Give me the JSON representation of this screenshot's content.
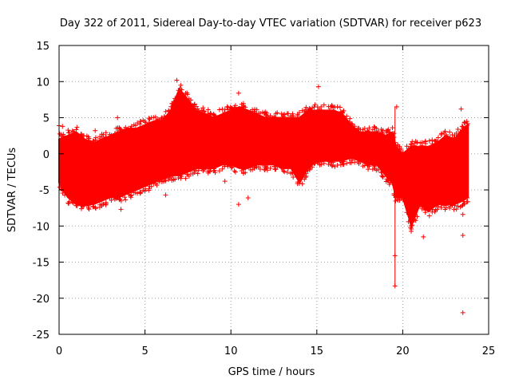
{
  "chart_data": {
    "type": "scatter",
    "title": "Day 322 of 2011, Sidereal Day-to-day VTEC variation (SDTVAR) for receiver p623",
    "xlabel": "GPS time / hours",
    "ylabel": "SDTVAR / TECUs",
    "xlim": [
      0,
      25
    ],
    "ylim": [
      -25,
      15
    ],
    "x_ticks": [
      0,
      5,
      10,
      15,
      20,
      25
    ],
    "y_ticks": [
      -25,
      -20,
      -15,
      -10,
      -5,
      0,
      5,
      10,
      15
    ],
    "grid": true,
    "marker": "+",
    "color": "#ff0000",
    "envelope": {
      "x": [
        0,
        0.5,
        1,
        1.5,
        2,
        2.5,
        3,
        3.5,
        4,
        4.5,
        5,
        5.5,
        6,
        6.5,
        7,
        7.5,
        8,
        8.5,
        9,
        9.5,
        10,
        10.5,
        11,
        11.5,
        12,
        12.5,
        13,
        13.5,
        14,
        14.5,
        15,
        15.5,
        16,
        16.5,
        17,
        17.5,
        18,
        18.5,
        19,
        19.4,
        19.6,
        20,
        20.5,
        21,
        21.5,
        22,
        22.5,
        23,
        23.5,
        23.8
      ],
      "upper": [
        2,
        2.5,
        3,
        2,
        1.5,
        2,
        2.5,
        3,
        3.5,
        3.5,
        4,
        4.5,
        4.5,
        6,
        9,
        7.5,
        6,
        5.5,
        5,
        5.5,
        6,
        6.5,
        6,
        5.5,
        5,
        5,
        5,
        5,
        5,
        6,
        6,
        6,
        6,
        5.5,
        4,
        3,
        3,
        3,
        2.5,
        3,
        1,
        0,
        1,
        1,
        1,
        1.5,
        2.5,
        2,
        3.5,
        4
      ],
      "lower": [
        -4,
        -6,
        -7,
        -7,
        -7,
        -6.5,
        -6,
        -6,
        -5.5,
        -5,
        -4.5,
        -4,
        -3.5,
        -3,
        -3,
        -2.5,
        -2,
        -2,
        -2,
        -1.5,
        -1.5,
        -2,
        -2,
        -1.5,
        -1.5,
        -1.5,
        -2,
        -2,
        -4,
        -2,
        -1,
        -1,
        -1,
        -1,
        -0.5,
        -1,
        -1.5,
        -1.5,
        -3,
        -4,
        -6,
        -6,
        -10,
        -7,
        -8,
        -7,
        -7,
        -7,
        -6.5,
        -6
      ]
    },
    "outliers": [
      {
        "x": 19.55,
        "y": -18.3
      },
      {
        "x": 19.55,
        "y": -14.1
      },
      {
        "x": 19.65,
        "y": 6.5
      },
      {
        "x": 23.5,
        "y": -22.0
      },
      {
        "x": 23.5,
        "y": -11.3
      },
      {
        "x": 23.5,
        "y": -8.4
      },
      {
        "x": 15.1,
        "y": 9.3
      },
      {
        "x": 6.85,
        "y": 10.2
      },
      {
        "x": 9.65,
        "y": -3.8
      },
      {
        "x": 10.45,
        "y": -7.0
      },
      {
        "x": 10.45,
        "y": 8.4
      },
      {
        "x": 11.0,
        "y": -6.1
      },
      {
        "x": 3.4,
        "y": 5.0
      },
      {
        "x": 1.2,
        "y": -1.0
      },
      {
        "x": 0.0,
        "y": 3.9
      },
      {
        "x": 0.2,
        "y": 3.8
      },
      {
        "x": 8.5,
        "y": 5.5
      },
      {
        "x": 6.2,
        "y": -5.7
      },
      {
        "x": 3.6,
        "y": -7.7
      },
      {
        "x": 2.1,
        "y": 3.2
      },
      {
        "x": 23.4,
        "y": 6.2
      },
      {
        "x": 21.2,
        "y": -11.5
      }
    ]
  }
}
